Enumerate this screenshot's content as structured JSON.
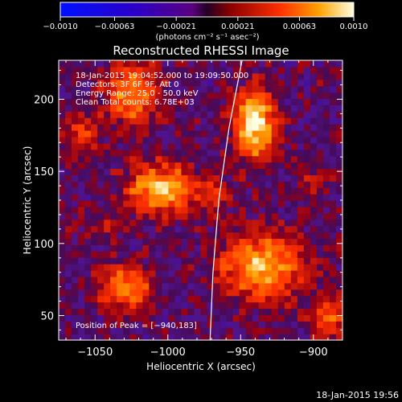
{
  "chart_data": {
    "type": "heatmap",
    "title": "Reconstructed RHESSI Image",
    "xlabel": "Heliocentric X (arcsec)",
    "ylabel": "Heliocentric Y (arcsec)",
    "xlim": [
      -1075,
      -880
    ],
    "ylim": [
      33,
      227
    ],
    "xticks": [
      -1050,
      -1000,
      -950,
      -900
    ],
    "xtick_labels": [
      "−1050",
      "−1000",
      "−950",
      "−900"
    ],
    "yticks": [
      50,
      100,
      150,
      200
    ],
    "ytick_labels": [
      "50",
      "100",
      "150",
      "200"
    ],
    "colorbar": {
      "range": [
        -0.001,
        0.001
      ],
      "ticks": [
        -0.001,
        -0.00063,
        -0.00021,
        0.00021,
        0.00063,
        0.001
      ],
      "tick_labels": [
        "−0.0010",
        "−0.00063",
        "−0.00021",
        "0.00021",
        "0.00063",
        "0.0010"
      ],
      "units": "(photons cm⁻² s⁻¹ asec⁻²)"
    },
    "annotations": [
      "18-Jan-2015 19:04:52.000 to 19:09:50.000",
      "Detectors: 3F 6F 9F, Att 0",
      "Energy Range: 25.0 - 50.0 keV",
      "Clean    Total counts: 6.78E+03"
    ],
    "peak_label": "Position of Peak = [−940,183]",
    "sources": [
      {
        "x": -1025,
        "y": 205,
        "peak": 0.0007,
        "sx": 13,
        "sy": 16
      },
      {
        "x": -1060,
        "y": 175,
        "peak": 0.0004,
        "sx": 9,
        "sy": 12
      },
      {
        "x": -1005,
        "y": 138,
        "peak": 0.0009,
        "sx": 16,
        "sy": 12
      },
      {
        "x": -940,
        "y": 183,
        "peak": 0.001,
        "sx": 10,
        "sy": 17
      },
      {
        "x": -935,
        "y": 85,
        "peak": 0.00082,
        "sx": 20,
        "sy": 16
      },
      {
        "x": -1030,
        "y": 70,
        "peak": 0.00072,
        "sx": 13,
        "sy": 11
      },
      {
        "x": -968,
        "y": 135,
        "peak": 0.0003,
        "sx": 7,
        "sy": 11
      },
      {
        "x": -890,
        "y": 48,
        "peak": 0.00055,
        "sx": 8,
        "sy": 12
      },
      {
        "x": -1045,
        "y": 112,
        "peak": 0.00022,
        "sx": 9,
        "sy": 8
      },
      {
        "x": -900,
        "y": 145,
        "peak": 0.0002,
        "sx": 9,
        "sy": 10
      }
    ],
    "limb": [
      [
        -949,
        227
      ],
      [
        -958,
        180
      ],
      [
        -965,
        130
      ],
      [
        -969,
        80
      ],
      [
        -971,
        33
      ]
    ]
  },
  "footer": {
    "timestamp": "18-Jan-2015 19:56"
  }
}
